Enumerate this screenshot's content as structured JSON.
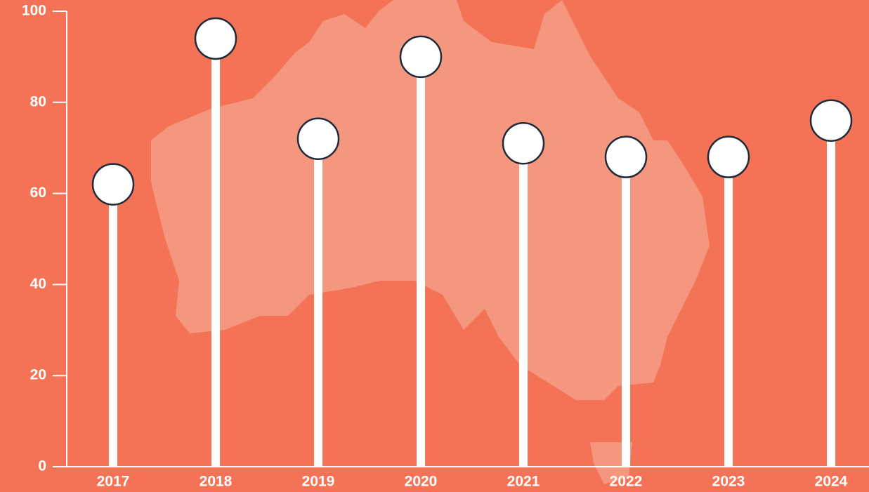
{
  "chart_data": {
    "type": "lollipop",
    "categories": [
      "2017",
      "2018",
      "2019",
      "2020",
      "2021",
      "2022",
      "2023",
      "2024"
    ],
    "values": [
      62,
      94,
      72,
      90,
      71,
      68,
      68,
      76
    ],
    "color": "#ffffff",
    "marker_stroke": "#1f2a3a",
    "background": "#f47356",
    "ylim": [
      0,
      100
    ],
    "yticks": [
      0,
      20,
      40,
      60,
      80,
      100
    ]
  }
}
